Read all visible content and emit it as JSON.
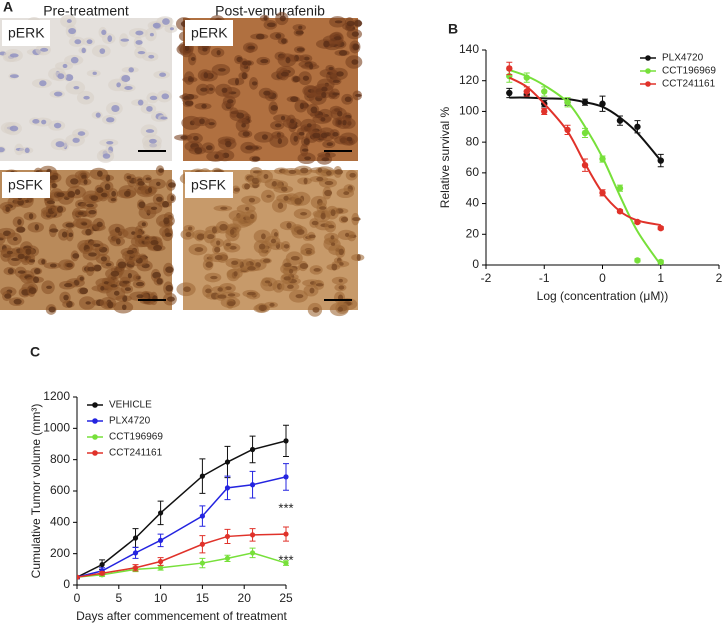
{
  "panel_a": {
    "label": "A",
    "columns": [
      "Pre-treatment",
      "Post-vemurafenib"
    ],
    "images": [
      "pERK",
      "pERK",
      "pSFK",
      "pSFK"
    ]
  },
  "chart_data": [
    {
      "type": "scatter",
      "panel_label": "B",
      "xlabel": "Log (concentration (μM))",
      "ylabel": "Relative survival %",
      "xlim": [
        -2,
        2
      ],
      "xticks": [
        -2,
        -1,
        0,
        1,
        2
      ],
      "ylim": [
        0,
        140
      ],
      "yticks": [
        0,
        20,
        40,
        60,
        80,
        100,
        120,
        140
      ],
      "legend": "upper right",
      "series": [
        {
          "name": "PLX4720",
          "color": "#111111",
          "x": [
            -1.6,
            -1.3,
            -1.0,
            -0.6,
            -0.3,
            0,
            0.3,
            0.6,
            1.0
          ],
          "values": [
            112,
            111,
            105,
            106,
            106,
            105,
            94,
            90,
            68
          ],
          "errors": [
            3,
            2,
            2,
            2,
            2,
            5,
            3,
            4,
            4
          ],
          "fit_values": [
            109,
            109,
            108.5,
            108,
            106,
            103,
            96,
            86,
            68
          ]
        },
        {
          "name": "CCT196969",
          "color": "#77e03a",
          "x": [
            -1.6,
            -1.3,
            -1.0,
            -0.6,
            -0.3,
            0,
            0.3,
            0.6,
            1.0
          ],
          "values": [
            123,
            122,
            113,
            106,
            86,
            69,
            50,
            3,
            2
          ],
          "errors": [
            4,
            3,
            3,
            3,
            3,
            2,
            2,
            1,
            1
          ],
          "fit_values": [
            127,
            123,
            117,
            106,
            90,
            70,
            45,
            22,
            0
          ]
        },
        {
          "name": "CCT241161",
          "color": "#e0322a",
          "x": [
            -1.6,
            -1.3,
            -1.0,
            -0.6,
            -0.3,
            0,
            0.3,
            0.6,
            1.0
          ],
          "values": [
            128,
            113,
            100,
            88,
            65,
            47,
            35,
            28,
            24
          ],
          "errors": [
            4,
            3,
            2,
            3,
            4,
            2,
            1,
            1,
            1
          ],
          "fit_values": [
            122,
            116,
            105,
            87,
            66,
            47,
            35,
            29,
            26
          ]
        }
      ]
    },
    {
      "type": "line",
      "panel_label": "C",
      "xlabel": "Days after commencement of treatment",
      "ylabel": "Cumulative Tumor volume (mm³)",
      "xlim": [
        0,
        25
      ],
      "xticks": [
        0,
        5,
        10,
        15,
        20,
        25
      ],
      "ylim": [
        0,
        1200
      ],
      "yticks": [
        0,
        200,
        400,
        600,
        800,
        1000,
        1200
      ],
      "legend": "upper left",
      "annotations": [
        "***",
        "***"
      ],
      "x": [
        0,
        3,
        7,
        10,
        15,
        18,
        21,
        25
      ],
      "series": [
        {
          "name": "VEHICLE",
          "color": "#111111",
          "values": [
            50,
            130,
            300,
            460,
            695,
            785,
            865,
            920
          ],
          "errors": [
            10,
            30,
            60,
            75,
            110,
            100,
            85,
            100
          ]
        },
        {
          "name": "PLX4720",
          "color": "#2424e0",
          "values": [
            50,
            90,
            205,
            285,
            440,
            620,
            640,
            690
          ],
          "errors": [
            10,
            20,
            35,
            40,
            65,
            75,
            85,
            85
          ]
        },
        {
          "name": "CCT196969",
          "color": "#77e03a",
          "values": [
            50,
            65,
            100,
            110,
            140,
            170,
            205,
            140
          ],
          "errors": [
            5,
            10,
            15,
            15,
            30,
            20,
            30,
            15
          ]
        },
        {
          "name": "CCT241161",
          "color": "#e0322a",
          "values": [
            50,
            75,
            110,
            150,
            260,
            310,
            320,
            325
          ],
          "errors": [
            5,
            10,
            20,
            25,
            55,
            45,
            40,
            45
          ]
        }
      ]
    }
  ]
}
